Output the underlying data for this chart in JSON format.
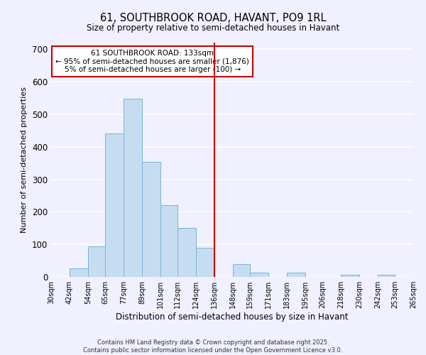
{
  "title": "61, SOUTHBROOK ROAD, HAVANT, PO9 1RL",
  "subtitle": "Size of property relative to semi-detached houses in Havant",
  "xlabel": "Distribution of semi-detached houses by size in Havant",
  "ylabel": "Number of semi-detached properties",
  "bins": [
    30,
    42,
    54,
    65,
    77,
    89,
    101,
    112,
    124,
    136,
    148,
    159,
    171,
    183,
    195,
    206,
    218,
    230,
    242,
    253,
    265
  ],
  "counts": [
    0,
    27,
    93,
    440,
    547,
    353,
    220,
    150,
    90,
    0,
    40,
    13,
    0,
    13,
    0,
    0,
    7,
    0,
    7,
    0
  ],
  "bar_color": "#c6dcf0",
  "bar_edge_color": "#7ab3d8",
  "vline_x": 136,
  "vline_color": "#cc0000",
  "ylim": [
    0,
    720
  ],
  "yticks": [
    0,
    100,
    200,
    300,
    400,
    500,
    600,
    700
  ],
  "annotation_title": "61 SOUTHBROOK ROAD: 133sqm",
  "annotation_line1": "← 95% of semi-detached houses are smaller (1,876)",
  "annotation_line2": "5% of semi-detached houses are larger (100) →",
  "annotation_box_color": "#ffffff",
  "annotation_box_edge": "#cc0000",
  "footnote1": "Contains HM Land Registry data © Crown copyright and database right 2025.",
  "footnote2": "Contains public sector information licensed under the Open Government Licence v3.0.",
  "bg_color": "#f0f0ff",
  "grid_color": "#ffffff",
  "tick_labels": [
    "30sqm",
    "42sqm",
    "54sqm",
    "65sqm",
    "77sqm",
    "89sqm",
    "101sqm",
    "112sqm",
    "124sqm",
    "136sqm",
    "148sqm",
    "159sqm",
    "171sqm",
    "183sqm",
    "195sqm",
    "206sqm",
    "218sqm",
    "230sqm",
    "242sqm",
    "253sqm",
    "265sqm"
  ]
}
